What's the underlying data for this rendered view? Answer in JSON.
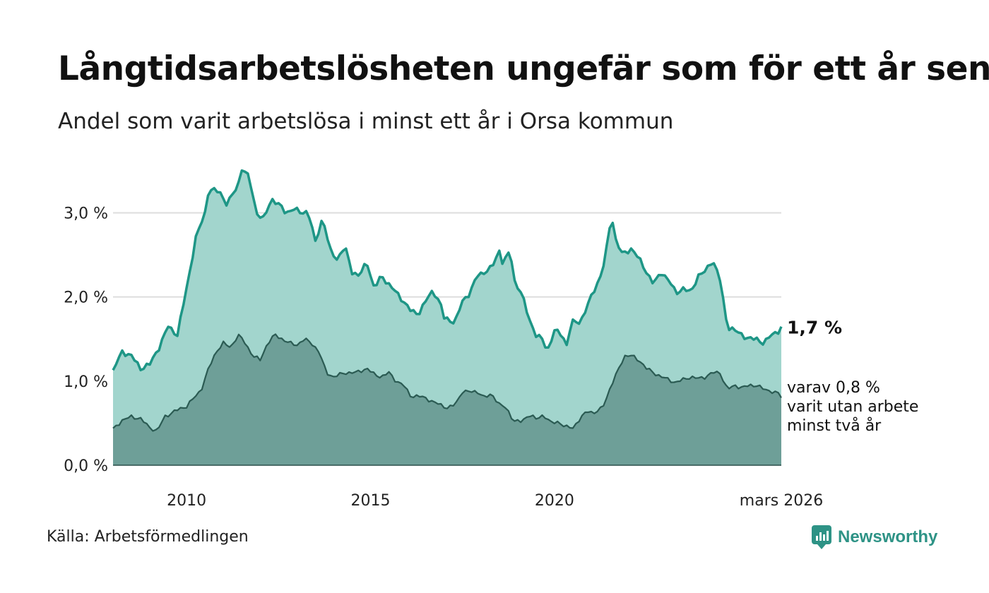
{
  "title": "Långtidsarbetslösheten ungefär som för ett år sen",
  "subtitle": "Andel som varit arbetslösa i minst ett år i Orsa kommun",
  "source": "Källa: Arbetsförmedlingen",
  "brand": "Newsworthy",
  "colors": {
    "series1_line": "#1e9686",
    "series1_fill": "#a2d5cd",
    "series2_line": "#2b5b53",
    "series2_fill": "#6e9f98",
    "grid": "#dddddd",
    "brand": "#2e9386"
  },
  "chart_data": {
    "type": "area",
    "title": "Långtidsarbetslösheten ungefär som för ett år sen",
    "xlabel": "",
    "ylabel": "",
    "x_start": "2008-01",
    "x_end": "2026-03",
    "x_step": "month",
    "ylim": [
      0,
      3.6
    ],
    "y_ticks": [
      0,
      1,
      2,
      3
    ],
    "y_tick_labels": [
      "0,0 %",
      "1,0 %",
      "2,0 %",
      "3,0 %"
    ],
    "x_ticks": [
      2010,
      2015,
      2020
    ],
    "x_tick_labels": [
      "2010",
      "2015",
      "2020"
    ],
    "x_end_label": "mars 2026",
    "grid": true,
    "series": [
      {
        "name": "Arbetslösa minst ett år",
        "end_label": "1,7 %",
        "anchors": [
          [
            2008.0,
            1.13
          ],
          [
            2008.25,
            1.35
          ],
          [
            2008.5,
            1.3
          ],
          [
            2008.75,
            1.15
          ],
          [
            2009.0,
            1.2
          ],
          [
            2009.25,
            1.4
          ],
          [
            2009.5,
            1.65
          ],
          [
            2009.75,
            1.55
          ],
          [
            2010.0,
            2.1
          ],
          [
            2010.25,
            2.7
          ],
          [
            2010.5,
            3.0
          ],
          [
            2010.6,
            3.28
          ],
          [
            2010.9,
            3.25
          ],
          [
            2011.1,
            3.1
          ],
          [
            2011.4,
            3.33
          ],
          [
            2011.5,
            3.53
          ],
          [
            2011.7,
            3.42
          ],
          [
            2011.9,
            3.0
          ],
          [
            2012.1,
            2.92
          ],
          [
            2012.3,
            3.17
          ],
          [
            2012.5,
            3.1
          ],
          [
            2012.7,
            3.0
          ],
          [
            2012.9,
            3.05
          ],
          [
            2013.1,
            3.0
          ],
          [
            2013.3,
            3.02
          ],
          [
            2013.5,
            2.65
          ],
          [
            2013.7,
            2.95
          ],
          [
            2013.9,
            2.55
          ],
          [
            2014.1,
            2.45
          ],
          [
            2014.3,
            2.6
          ],
          [
            2014.5,
            2.3
          ],
          [
            2014.7,
            2.25
          ],
          [
            2014.9,
            2.42
          ],
          [
            2015.1,
            2.1
          ],
          [
            2015.3,
            2.25
          ],
          [
            2015.6,
            2.1
          ],
          [
            2015.9,
            1.95
          ],
          [
            2016.1,
            1.83
          ],
          [
            2016.3,
            1.8
          ],
          [
            2016.5,
            1.95
          ],
          [
            2016.7,
            2.08
          ],
          [
            2016.9,
            1.92
          ],
          [
            2017.0,
            1.75
          ],
          [
            2017.3,
            1.7
          ],
          [
            2017.5,
            1.95
          ],
          [
            2017.7,
            2.05
          ],
          [
            2017.9,
            2.25
          ],
          [
            2018.1,
            2.3
          ],
          [
            2018.3,
            2.35
          ],
          [
            2018.5,
            2.55
          ],
          [
            2018.6,
            2.4
          ],
          [
            2018.8,
            2.55
          ],
          [
            2018.9,
            2.2
          ],
          [
            2019.1,
            2.05
          ],
          [
            2019.3,
            1.75
          ],
          [
            2019.5,
            1.55
          ],
          [
            2019.7,
            1.48
          ],
          [
            2019.8,
            1.35
          ],
          [
            2020.0,
            1.6
          ],
          [
            2020.2,
            1.55
          ],
          [
            2020.35,
            1.42
          ],
          [
            2020.45,
            1.7
          ],
          [
            2020.7,
            1.7
          ],
          [
            2020.9,
            1.9
          ],
          [
            2021.1,
            2.1
          ],
          [
            2021.3,
            2.3
          ],
          [
            2021.45,
            2.65
          ],
          [
            2021.55,
            3.0
          ],
          [
            2021.65,
            2.7
          ],
          [
            2021.85,
            2.5
          ],
          [
            2022.1,
            2.58
          ],
          [
            2022.3,
            2.45
          ],
          [
            2022.5,
            2.3
          ],
          [
            2022.7,
            2.15
          ],
          [
            2022.9,
            2.3
          ],
          [
            2023.1,
            2.2
          ],
          [
            2023.3,
            2.05
          ],
          [
            2023.5,
            2.1
          ],
          [
            2023.7,
            2.05
          ],
          [
            2023.9,
            2.25
          ],
          [
            2024.1,
            2.3
          ],
          [
            2024.3,
            2.45
          ],
          [
            2024.5,
            2.2
          ],
          [
            2024.7,
            1.65
          ],
          [
            2024.9,
            1.6
          ],
          [
            2025.1,
            1.55
          ],
          [
            2025.3,
            1.5
          ],
          [
            2025.5,
            1.5
          ],
          [
            2025.7,
            1.45
          ],
          [
            2025.9,
            1.55
          ],
          [
            2026.1,
            1.6
          ],
          [
            2026.17,
            1.65
          ]
        ]
      },
      {
        "name": "varav minst två år",
        "end_label": [
          "varav 0,8 %",
          "varit utan arbete",
          "minst två år"
        ],
        "anchors": [
          [
            2008.0,
            0.44
          ],
          [
            2008.25,
            0.53
          ],
          [
            2008.5,
            0.58
          ],
          [
            2008.75,
            0.55
          ],
          [
            2009.0,
            0.45
          ],
          [
            2009.2,
            0.4
          ],
          [
            2009.4,
            0.58
          ],
          [
            2009.6,
            0.62
          ],
          [
            2009.8,
            0.67
          ],
          [
            2010.0,
            0.7
          ],
          [
            2010.2,
            0.8
          ],
          [
            2010.4,
            0.9
          ],
          [
            2010.6,
            1.15
          ],
          [
            2010.8,
            1.35
          ],
          [
            2011.0,
            1.45
          ],
          [
            2011.2,
            1.4
          ],
          [
            2011.4,
            1.55
          ],
          [
            2011.6,
            1.45
          ],
          [
            2011.8,
            1.3
          ],
          [
            2012.0,
            1.25
          ],
          [
            2012.2,
            1.45
          ],
          [
            2012.4,
            1.55
          ],
          [
            2012.6,
            1.5
          ],
          [
            2012.8,
            1.45
          ],
          [
            2013.0,
            1.43
          ],
          [
            2013.2,
            1.5
          ],
          [
            2013.4,
            1.45
          ],
          [
            2013.6,
            1.35
          ],
          [
            2013.8,
            1.1
          ],
          [
            2014.0,
            1.05
          ],
          [
            2014.3,
            1.1
          ],
          [
            2014.6,
            1.1
          ],
          [
            2014.9,
            1.15
          ],
          [
            2015.1,
            1.08
          ],
          [
            2015.3,
            1.05
          ],
          [
            2015.5,
            1.1
          ],
          [
            2015.7,
            1.0
          ],
          [
            2015.9,
            0.95
          ],
          [
            2016.1,
            0.82
          ],
          [
            2016.3,
            0.82
          ],
          [
            2016.5,
            0.8
          ],
          [
            2016.7,
            0.75
          ],
          [
            2016.9,
            0.72
          ],
          [
            2017.1,
            0.68
          ],
          [
            2017.3,
            0.72
          ],
          [
            2017.5,
            0.88
          ],
          [
            2017.7,
            0.87
          ],
          [
            2017.9,
            0.88
          ],
          [
            2018.1,
            0.8
          ],
          [
            2018.3,
            0.85
          ],
          [
            2018.5,
            0.72
          ],
          [
            2018.7,
            0.68
          ],
          [
            2018.9,
            0.52
          ],
          [
            2019.1,
            0.52
          ],
          [
            2019.3,
            0.6
          ],
          [
            2019.5,
            0.55
          ],
          [
            2019.7,
            0.6
          ],
          [
            2019.9,
            0.5
          ],
          [
            2020.1,
            0.52
          ],
          [
            2020.3,
            0.45
          ],
          [
            2020.5,
            0.45
          ],
          [
            2020.7,
            0.55
          ],
          [
            2020.9,
            0.65
          ],
          [
            2021.1,
            0.62
          ],
          [
            2021.3,
            0.68
          ],
          [
            2021.5,
            0.9
          ],
          [
            2021.7,
            1.1
          ],
          [
            2021.9,
            1.3
          ],
          [
            2022.1,
            1.3
          ],
          [
            2022.3,
            1.25
          ],
          [
            2022.5,
            1.15
          ],
          [
            2022.7,
            1.1
          ],
          [
            2022.9,
            1.05
          ],
          [
            2023.1,
            1.02
          ],
          [
            2023.3,
            0.98
          ],
          [
            2023.5,
            1.02
          ],
          [
            2023.7,
            1.05
          ],
          [
            2023.9,
            1.03
          ],
          [
            2024.1,
            1.05
          ],
          [
            2024.3,
            1.1
          ],
          [
            2024.5,
            1.1
          ],
          [
            2024.7,
            0.9
          ],
          [
            2024.9,
            0.95
          ],
          [
            2025.1,
            0.92
          ],
          [
            2025.3,
            0.95
          ],
          [
            2025.5,
            0.95
          ],
          [
            2025.7,
            0.9
          ],
          [
            2025.9,
            0.88
          ],
          [
            2026.1,
            0.85
          ],
          [
            2026.17,
            0.8
          ]
        ]
      }
    ]
  }
}
